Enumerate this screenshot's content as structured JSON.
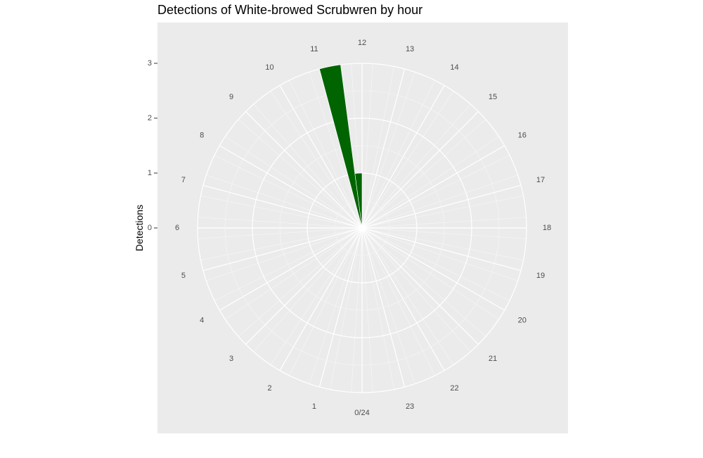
{
  "chart_data": {
    "type": "bar",
    "coordinate_system": "polar",
    "title": "Detections of White-browed Scrubwren by hour",
    "ylabel": "Detections",
    "xlabel": "",
    "x_tick_labels": [
      "0/24",
      "1",
      "2",
      "3",
      "4",
      "5",
      "6",
      "7",
      "8",
      "9",
      "10",
      "11",
      "12",
      "13",
      "14",
      "15",
      "16",
      "17",
      "18",
      "19",
      "20",
      "21",
      "22",
      "23"
    ],
    "y_ticks": [
      0,
      1,
      2,
      3
    ],
    "ylim": [
      0,
      3
    ],
    "x_range": [
      0,
      24
    ],
    "bin_width_hours": 0.5,
    "bars": [
      {
        "hour_start": 11.0,
        "value": 3
      },
      {
        "hour_start": 11.5,
        "value": 1
      }
    ],
    "bar_color": "#006400",
    "panel_background": "#ebebeb",
    "grid": true
  }
}
